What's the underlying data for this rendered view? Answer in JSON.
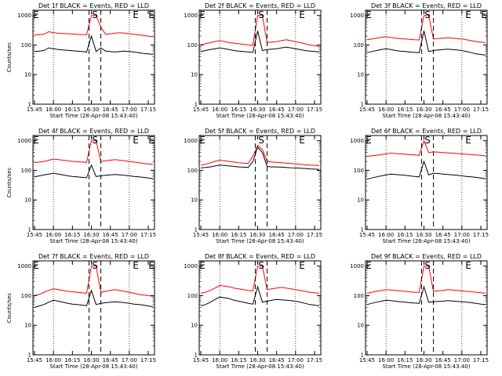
{
  "chart_data": [
    {
      "type": "line",
      "title": "Det 1f BLACK = Events, RED = LLD",
      "ylabel": "Counts/sec",
      "xlabel": "Start Time (28-Apr-08 15:43:40)",
      "x_ticks": [
        "15:45",
        "16:00",
        "16:15",
        "16:30",
        "16:45",
        "17:00",
        "17:15"
      ],
      "y_ticks": [
        "1",
        "10",
        "100",
        "1000"
      ],
      "yscale": "log",
      "ylim": [
        1,
        1000
      ],
      "markers": {
        "start": "S",
        "end": "E",
        "start_left": "E",
        "end_right": "E"
      },
      "series": [
        {
          "name": "BLACK = Events",
          "color": "#000000",
          "values": [
            60,
            62,
            65,
            80,
            75,
            70,
            68,
            66,
            64,
            62,
            60,
            58,
            200,
            60,
            80,
            62,
            60,
            58,
            60,
            62,
            60,
            58,
            55,
            52,
            50,
            48
          ]
        },
        {
          "name": "RED = LLD",
          "color": "#ff0000",
          "values": [
            220,
            225,
            230,
            280,
            260,
            250,
            245,
            240,
            235,
            230,
            225,
            220,
            1000,
            1000,
            400,
            230,
            240,
            250,
            260,
            250,
            240,
            230,
            220,
            210,
            200,
            190
          ]
        }
      ]
    },
    {
      "type": "line",
      "title": "Det 2f BLACK = Events, RED = LLD",
      "ylabel": "",
      "xlabel": "Start Time (28-Apr-08 15:43:40)",
      "x_ticks": [
        "15:45",
        "16:00",
        "16:15",
        "16:30",
        "16:45",
        "17:00",
        "17:15"
      ],
      "y_ticks": [
        "1",
        "10",
        "100",
        "1000"
      ],
      "yscale": "log",
      "ylim": [
        1,
        1000
      ],
      "markers": {
        "start": "S",
        "end": "E",
        "start_left": "E",
        "end_right": ""
      },
      "series": [
        {
          "name": "BLACK = Events",
          "color": "#000000",
          "values": [
            60,
            65,
            70,
            75,
            80,
            75,
            70,
            65,
            62,
            60,
            58,
            56,
            300,
            65,
            70,
            72,
            75,
            80,
            85,
            80,
            75,
            70,
            65,
            62,
            60,
            58
          ]
        },
        {
          "name": "RED = LLD",
          "color": "#ff0000",
          "values": [
            100,
            110,
            120,
            130,
            140,
            130,
            120,
            115,
            110,
            105,
            100,
            98,
            1000,
            1000,
            120,
            125,
            130,
            140,
            150,
            140,
            130,
            120,
            110,
            100,
            95,
            90
          ]
        }
      ]
    },
    {
      "type": "line",
      "title": "Det 3f BLACK = Events, RED = LLD",
      "ylabel": "",
      "xlabel": "Start Time (28-Apr-08 15:43:40)",
      "x_ticks": [
        "15:45",
        "16:00",
        "16:15",
        "16:30",
        "16:45",
        "17:00",
        "17:15"
      ],
      "y_ticks": [
        "1",
        "10",
        "100",
        "1000"
      ],
      "yscale": "log",
      "ylim": [
        1,
        1000
      ],
      "markers": {
        "start": "S",
        "end": "E",
        "start_left": "E",
        "end_right": "E"
      },
      "series": [
        {
          "name": "BLACK = Events",
          "color": "#000000",
          "values": [
            55,
            60,
            65,
            70,
            75,
            70,
            65,
            62,
            60,
            58,
            56,
            55,
            300,
            60,
            65,
            68,
            70,
            72,
            70,
            68,
            65,
            60,
            55,
            50,
            48,
            45
          ]
        },
        {
          "name": "RED = LLD",
          "color": "#ff0000",
          "values": [
            150,
            160,
            170,
            180,
            190,
            180,
            170,
            165,
            160,
            155,
            150,
            148,
            1000,
            1000,
            160,
            165,
            170,
            175,
            170,
            165,
            160,
            150,
            140,
            130,
            125,
            120
          ]
        }
      ]
    },
    {
      "type": "line",
      "title": "Det 4f BLACK = Events, RED = LLD",
      "ylabel": "Counts/sec",
      "xlabel": "Start Time (28-Apr-08 15:43:40)",
      "x_ticks": [
        "15:45",
        "16:00",
        "16:15",
        "16:30",
        "16:45",
        "17:00",
        "17:15"
      ],
      "y_ticks": [
        "1",
        "10",
        "100",
        "1000"
      ],
      "yscale": "log",
      "ylim": [
        1,
        1000
      ],
      "markers": {
        "start": "S",
        "end": "E",
        "start_left": "E",
        "end_right": "E"
      },
      "series": [
        {
          "name": "BLACK = Events",
          "color": "#000000",
          "values": [
            60,
            65,
            70,
            75,
            80,
            75,
            70,
            65,
            62,
            60,
            58,
            56,
            150,
            62,
            65,
            68,
            70,
            72,
            70,
            68,
            65,
            62,
            60,
            58,
            55,
            52
          ]
        },
        {
          "name": "RED = LLD",
          "color": "#ff0000",
          "values": [
            180,
            190,
            200,
            220,
            240,
            230,
            220,
            210,
            200,
            195,
            190,
            185,
            1000,
            1000,
            200,
            210,
            220,
            230,
            220,
            210,
            200,
            190,
            180,
            170,
            165,
            160
          ]
        }
      ]
    },
    {
      "type": "line",
      "title": "Det 5f BLACK = Events, RED = LLD",
      "ylabel": "",
      "xlabel": "Start Time (28-Apr-08 15:43:40)",
      "x_ticks": [
        "15:45",
        "16:00",
        "16:15",
        "16:30",
        "16:45",
        "17:00",
        "17:15"
      ],
      "y_ticks": [
        "1",
        "10",
        "100",
        "1000"
      ],
      "yscale": "log",
      "ylim": [
        1,
        1000
      ],
      "markers": {
        "start": "S",
        "end": "E",
        "start_left": "E",
        "end_right": ""
      },
      "series": [
        {
          "name": "BLACK = Events",
          "color": "#000000",
          "values": [
            120,
            125,
            130,
            140,
            150,
            145,
            140,
            135,
            130,
            128,
            125,
            200,
            600,
            400,
            135,
            130,
            130,
            128,
            125,
            122,
            120,
            118,
            115,
            112,
            110,
            108
          ]
        },
        {
          "name": "RED = LLD",
          "color": "#ff0000",
          "values": [
            150,
            160,
            180,
            200,
            220,
            210,
            200,
            190,
            180,
            175,
            170,
            300,
            700,
            500,
            200,
            190,
            185,
            180,
            175,
            170,
            165,
            160,
            155,
            150,
            148,
            145
          ]
        }
      ]
    },
    {
      "type": "line",
      "title": "Det 6f BLACK = Events, RED = LLD",
      "ylabel": "",
      "xlabel": "Start Time (28-Apr-08 15:43:40)",
      "x_ticks": [
        "15:45",
        "16:00",
        "16:15",
        "16:30",
        "16:45",
        "17:00",
        "17:15"
      ],
      "y_ticks": [
        "1",
        "10",
        "100",
        "1000"
      ],
      "yscale": "log",
      "ylim": [
        1,
        1000
      ],
      "markers": {
        "start": "S",
        "end": "E",
        "start_left": "E",
        "end_right": ""
      },
      "series": [
        {
          "name": "BLACK = Events",
          "color": "#000000",
          "values": [
            50,
            55,
            60,
            65,
            70,
            75,
            72,
            70,
            68,
            65,
            62,
            60,
            200,
            70,
            80,
            78,
            75,
            72,
            70,
            68,
            65,
            62,
            60,
            58,
            55,
            52
          ]
        },
        {
          "name": "RED = LLD",
          "color": "#ff0000",
          "values": [
            300,
            310,
            320,
            340,
            360,
            380,
            370,
            360,
            350,
            340,
            330,
            320,
            1000,
            400,
            420,
            410,
            400,
            390,
            380,
            370,
            360,
            350,
            340,
            330,
            320,
            310
          ]
        }
      ]
    },
    {
      "type": "line",
      "title": "Det 7f BLACK = Events, RED = LLD",
      "ylabel": "Counts/sec",
      "xlabel": "Start Time (28-Apr-08 15:43:40)",
      "x_ticks": [
        "15:45",
        "16:00",
        "16:15",
        "16:30",
        "16:45",
        "17:00",
        "17:15"
      ],
      "y_ticks": [
        "1",
        "10",
        "100",
        "1000"
      ],
      "yscale": "log",
      "ylim": [
        1,
        1000
      ],
      "markers": {
        "start": "S",
        "end": "E",
        "start_left": "E",
        "end_right": "E"
      },
      "series": [
        {
          "name": "BLACK = Events",
          "color": "#000000",
          "values": [
            40,
            45,
            50,
            60,
            70,
            65,
            60,
            55,
            52,
            50,
            48,
            46,
            150,
            50,
            55,
            58,
            60,
            62,
            60,
            58,
            55,
            52,
            50,
            48,
            45,
            42
          ]
        },
        {
          "name": "RED = LLD",
          "color": "#ff0000",
          "values": [
            100,
            110,
            130,
            150,
            170,
            160,
            150,
            140,
            135,
            130,
            125,
            120,
            1000,
            1000,
            130,
            140,
            150,
            160,
            150,
            140,
            130,
            120,
            110,
            105,
            100,
            95
          ]
        }
      ]
    },
    {
      "type": "line",
      "title": "Det 8f BLACK = Events, RED = LLD",
      "ylabel": "",
      "xlabel": "Start Time (28-Apr-08 15:43:40)",
      "x_ticks": [
        "15:45",
        "16:00",
        "16:15",
        "16:30",
        "16:45",
        "17:00",
        "17:15"
      ],
      "y_ticks": [
        "1",
        "10",
        "100",
        "1000"
      ],
      "yscale": "log",
      "ylim": [
        1,
        1000
      ],
      "markers": {
        "start": "S",
        "end": "E",
        "start_left": "E",
        "end_right": ""
      },
      "series": [
        {
          "name": "BLACK = Events",
          "color": "#000000",
          "values": [
            45,
            50,
            60,
            75,
            90,
            85,
            80,
            70,
            65,
            60,
            55,
            52,
            200,
            60,
            65,
            70,
            75,
            72,
            70,
            68,
            65,
            60,
            55,
            50,
            48,
            45
          ]
        },
        {
          "name": "RED = LLD",
          "color": "#ff0000",
          "values": [
            120,
            130,
            150,
            180,
            220,
            210,
            200,
            180,
            170,
            160,
            150,
            145,
            1000,
            1000,
            160,
            170,
            180,
            190,
            180,
            170,
            160,
            150,
            140,
            130,
            125,
            120
          ]
        }
      ]
    },
    {
      "type": "line",
      "title": "Det 9f BLACK = Events, RED = LLD",
      "ylabel": "",
      "xlabel": "Start Time (28-Apr-08 15:43:40)",
      "x_ticks": [
        "15:45",
        "16:00",
        "16:15",
        "16:30",
        "16:45",
        "17:00",
        "17:15"
      ],
      "y_ticks": [
        "1",
        "10",
        "100",
        "1000"
      ],
      "yscale": "log",
      "ylim": [
        1,
        1000
      ],
      "markers": {
        "start": "S",
        "end": "E",
        "start_left": "E",
        "end_right": ""
      },
      "series": [
        {
          "name": "BLACK = Events",
          "color": "#000000",
          "values": [
            50,
            55,
            60,
            65,
            70,
            68,
            65,
            62,
            60,
            58,
            56,
            55,
            200,
            60,
            62,
            64,
            65,
            68,
            66,
            64,
            62,
            60,
            58,
            55,
            52,
            50
          ]
        },
        {
          "name": "RED = LLD",
          "color": "#ff0000",
          "values": [
            120,
            130,
            140,
            150,
            160,
            155,
            150,
            145,
            140,
            135,
            130,
            128,
            1000,
            1000,
            140,
            145,
            150,
            160,
            155,
            150,
            145,
            140,
            135,
            130,
            125,
            120
          ]
        }
      ]
    }
  ]
}
